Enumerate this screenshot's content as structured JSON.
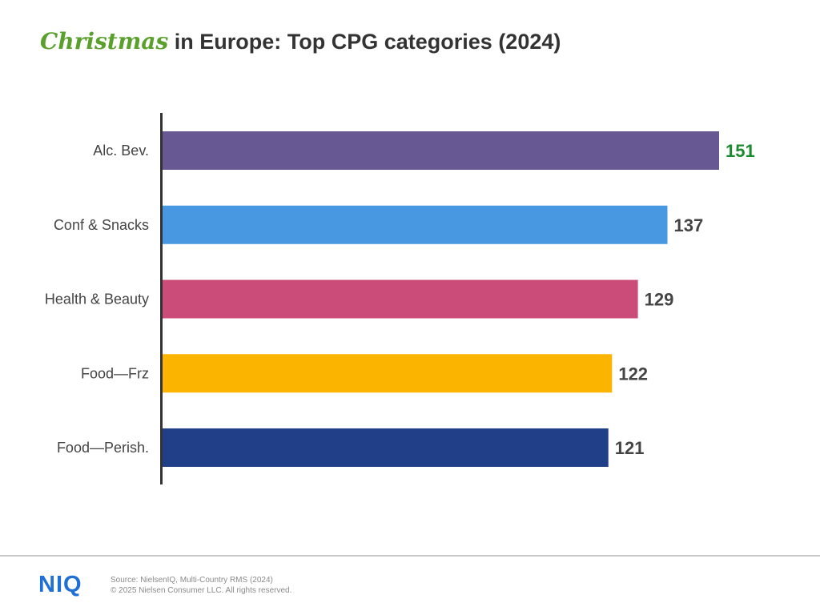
{
  "title": {
    "accent": "Christmas",
    "rest": " in Europe: Top CPG categories (2024)"
  },
  "chart_data": {
    "type": "bar",
    "orientation": "horizontal",
    "categories": [
      "Alc. Bev.",
      "Conf & Snacks",
      "Health & Beauty",
      "Food—Frz",
      "Food—Perish."
    ],
    "values": [
      151,
      137,
      129,
      122,
      121
    ],
    "data_labels": [
      "151",
      "137",
      "129",
      "122",
      "121"
    ],
    "colors": [
      "#675792",
      "#4797e1",
      "#cb4c79",
      "#fbb400",
      "#213f88"
    ],
    "label_colors": [
      "#1a8a2e",
      "#444444",
      "#444444",
      "#444444",
      "#444444"
    ],
    "xlim": [
      0,
      151
    ],
    "grid": false,
    "title": "Christmas in Europe: Top CPG categories (2024)",
    "xlabel": "",
    "ylabel": ""
  },
  "footer": {
    "logo": "NIQ",
    "source": "Source: NielsenIQ, Multi-Country RMS (2024)",
    "copyright": "© 2025 Nielsen Consumer LLC. All rights reserved."
  }
}
